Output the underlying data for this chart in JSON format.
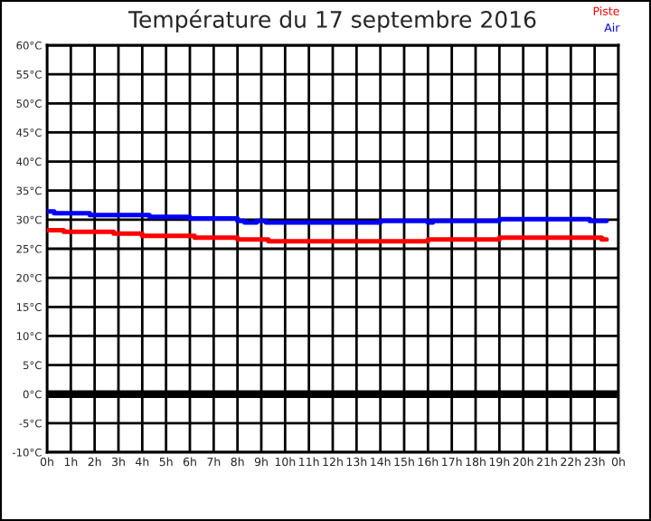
{
  "chart_data": {
    "type": "step",
    "title": "Température du 17 septembre 2016",
    "series": [
      {
        "name": "Piste",
        "color": "#ff0000",
        "x": [
          "2016-09-17T00:00",
          "2016-09-17T00:42",
          "2016-09-17T02:48",
          "2016-09-17T04:00",
          "2016-09-17T06:12",
          "2016-09-17T08:00",
          "2016-09-17T09:18",
          "2016-09-17T16:00",
          "2016-09-17T19:00",
          "2016-09-17T23:18",
          "2016-09-17T23:30"
        ],
        "values": [
          28.2,
          27.9,
          27.6,
          27.2,
          26.9,
          26.6,
          26.3,
          26.6,
          26.9,
          26.6,
          26.6
        ]
      },
      {
        "name": "Air",
        "color": "#0000ff",
        "x": [
          "2016-09-17T00:00",
          "2016-09-17T00:18",
          "2016-09-17T01:48",
          "2016-09-17T04:18",
          "2016-09-17T06:00",
          "2016-09-17T08:00",
          "2016-09-17T08:18",
          "2016-09-17T08:48",
          "2016-09-17T09:12",
          "2016-09-17T14:00",
          "2016-09-17T16:00",
          "2016-09-17T16:12",
          "2016-09-17T19:00",
          "2016-09-17T22:48",
          "2016-09-17T23:30"
        ],
        "values": [
          31.4,
          31.1,
          30.8,
          30.5,
          30.2,
          29.8,
          29.5,
          29.8,
          29.5,
          29.8,
          29.5,
          29.8,
          30.1,
          29.8,
          29.8
        ]
      }
    ],
    "xlim": [
      "2016-09-17T00:00",
      "2016-09-18T00:00"
    ],
    "xticks": [
      {
        "value": "2016-09-17T00:00",
        "label": "0h"
      },
      {
        "value": "2016-09-17T01:00",
        "label": "1h"
      },
      {
        "value": "2016-09-17T02:00",
        "label": "2h"
      },
      {
        "value": "2016-09-17T03:00",
        "label": "3h"
      },
      {
        "value": "2016-09-17T04:00",
        "label": "4h"
      },
      {
        "value": "2016-09-17T05:00",
        "label": "5h"
      },
      {
        "value": "2016-09-17T06:00",
        "label": "6h"
      },
      {
        "value": "2016-09-17T07:00",
        "label": "7h"
      },
      {
        "value": "2016-09-17T08:00",
        "label": "8h"
      },
      {
        "value": "2016-09-17T09:00",
        "label": "9h"
      },
      {
        "value": "2016-09-17T10:00",
        "label": "10h"
      },
      {
        "value": "2016-09-17T11:00",
        "label": "11h"
      },
      {
        "value": "2016-09-17T12:00",
        "label": "12h"
      },
      {
        "value": "2016-09-17T13:00",
        "label": "13h"
      },
      {
        "value": "2016-09-17T14:00",
        "label": "14h"
      },
      {
        "value": "2016-09-17T15:00",
        "label": "15h"
      },
      {
        "value": "2016-09-17T16:00",
        "label": "16h"
      },
      {
        "value": "2016-09-17T17:00",
        "label": "17h"
      },
      {
        "value": "2016-09-17T18:00",
        "label": "18h"
      },
      {
        "value": "2016-09-17T19:00",
        "label": "19h"
      },
      {
        "value": "2016-09-17T20:00",
        "label": "20h"
      },
      {
        "value": "2016-09-17T21:00",
        "label": "21h"
      },
      {
        "value": "2016-09-17T22:00",
        "label": "22h"
      },
      {
        "value": "2016-09-17T23:00",
        "label": "23h"
      },
      {
        "value": "2016-09-18T00:00",
        "label": "0h"
      }
    ],
    "ylim": [
      -10,
      60
    ],
    "yticks": [
      {
        "value": -10,
        "label": "-10°C"
      },
      {
        "value": -5,
        "label": "-5°C"
      },
      {
        "value": 0,
        "label": "0°C"
      },
      {
        "value": 5,
        "label": "5°C"
      },
      {
        "value": 10,
        "label": "10°C"
      },
      {
        "value": 15,
        "label": "15°C"
      },
      {
        "value": 20,
        "label": "20°C"
      },
      {
        "value": 25,
        "label": "25°C"
      },
      {
        "value": 30,
        "label": "30°C"
      },
      {
        "value": 35,
        "label": "35°C"
      },
      {
        "value": 40,
        "label": "40°C"
      },
      {
        "value": 45,
        "label": "45°C"
      },
      {
        "value": 50,
        "label": "50°C"
      },
      {
        "value": 55,
        "label": "55°C"
      },
      {
        "value": 60,
        "label": "60°C"
      }
    ],
    "ref_lines": [
      {
        "axis": "y",
        "value": 0,
        "color": "#000000"
      }
    ],
    "grid": true,
    "legend": "top right"
  }
}
